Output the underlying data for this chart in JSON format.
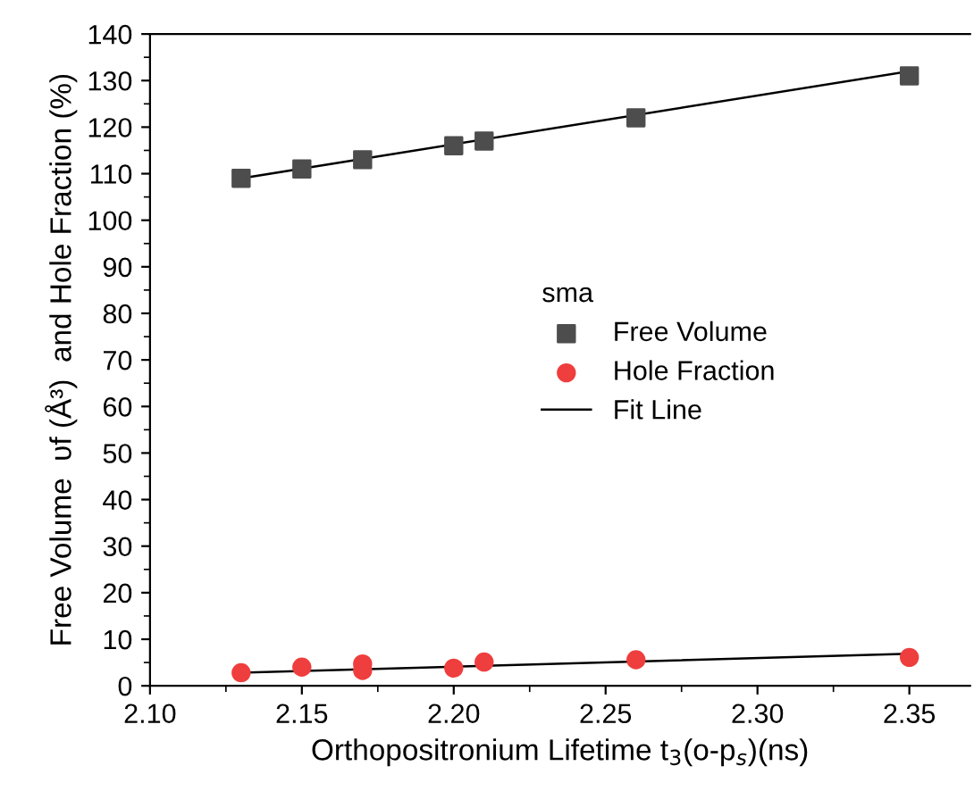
{
  "chart_data": {
    "type": "scatter",
    "xlabel": "Orthopositronium Lifetime t$_{3}$(o-p$_{s}$)(ns)",
    "ylabel": "Free Volume  υf (Å³)  and Hole Fraction (%)",
    "legend_title": "sma",
    "legend": "center",
    "grid": false,
    "xlim": [
      2.1,
      2.37
    ],
    "xticks": [
      {
        "value": 2.1,
        "label": "2.10"
      },
      2.15,
      {
        "value": 2.2,
        "label": "2.20"
      },
      2.25,
      {
        "value": 2.3,
        "label": "2.30"
      },
      2.35
    ],
    "ylim": [
      0,
      140
    ],
    "yticks": [
      0,
      10,
      20,
      30,
      40,
      50,
      60,
      70,
      80,
      90,
      100,
      110,
      120,
      130,
      140
    ],
    "series": [
      {
        "name": "Free Volume",
        "marker": "square",
        "color": "#4d4d4d",
        "x": [
          2.13,
          2.15,
          2.17,
          2.2,
          2.21,
          2.26,
          2.35
        ],
        "values": [
          109,
          111,
          113,
          116,
          117,
          122,
          131
        ]
      },
      {
        "name": "Hole Fraction",
        "marker": "circle",
        "color": "#ef3e3e",
        "x": [
          2.13,
          2.15,
          2.17,
          2.17,
          2.2,
          2.21,
          2.26,
          2.35
        ],
        "values": [
          2.8,
          4.0,
          4.7,
          3.3,
          3.8,
          5.1,
          5.6,
          6.1
        ]
      },
      {
        "name": "Fit Line",
        "type": "line",
        "line_style": "solid",
        "color": "#000000",
        "x": [
          2.13,
          2.35
        ],
        "values": [
          109,
          132
        ]
      },
      {
        "type": "line",
        "line_style": "solid",
        "color": "#000000",
        "x": [
          2.13,
          2.35
        ],
        "values": [
          2.8,
          6.9
        ]
      }
    ]
  }
}
